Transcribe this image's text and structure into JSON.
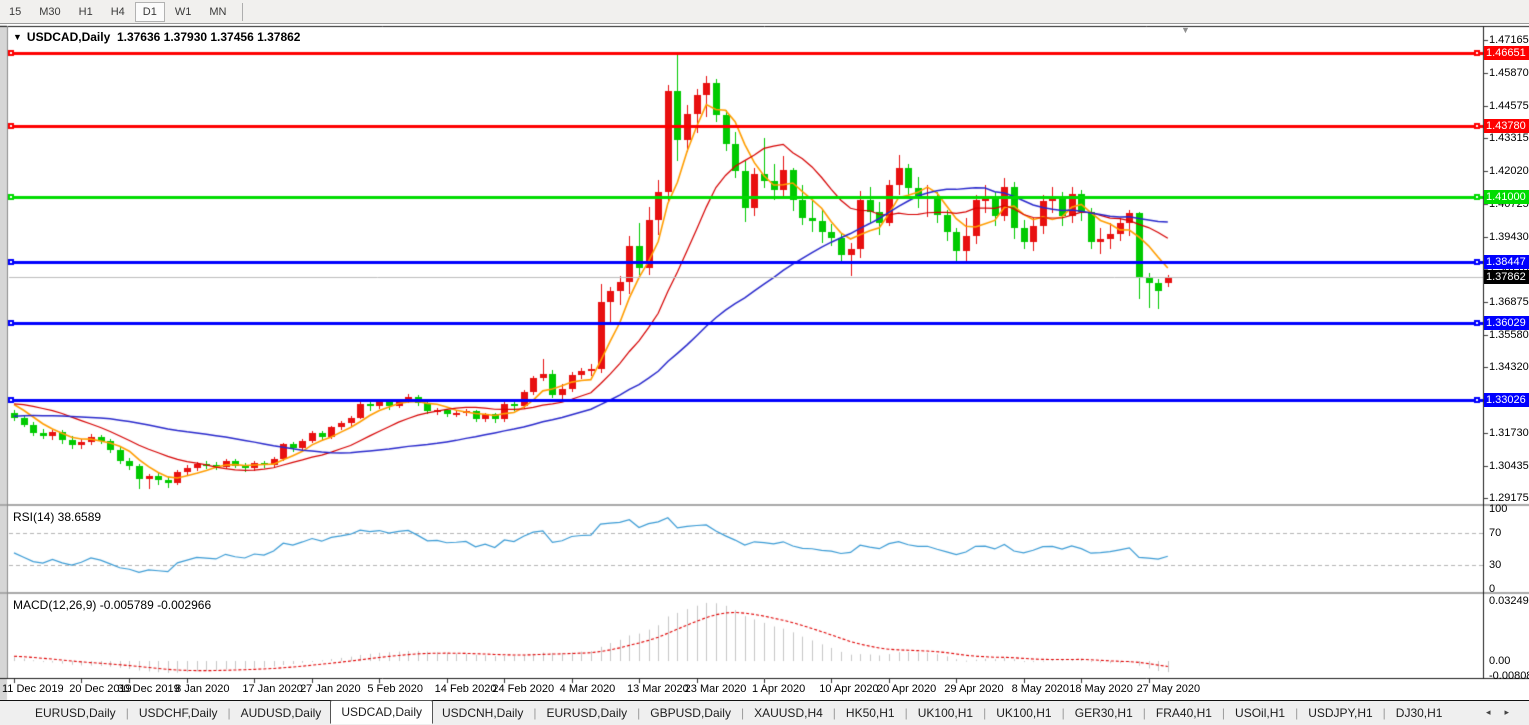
{
  "toolbar": {
    "timeframes": [
      {
        "label": "15",
        "active": false
      },
      {
        "label": "M30",
        "active": false
      },
      {
        "label": "H1",
        "active": false
      },
      {
        "label": "H4",
        "active": false
      },
      {
        "label": "D1",
        "active": true
      },
      {
        "label": "W1",
        "active": false
      },
      {
        "label": "MN",
        "active": false
      }
    ]
  },
  "chart_header": {
    "collapse_icon": "▼",
    "symbol": "USDCAD,Daily",
    "quote": "1.37636 1.37930 1.37456 1.37862",
    "shift_marker_icon": "▼"
  },
  "rsi_panel": {
    "label": "RSI(14) 38.6589"
  },
  "macd_panel": {
    "label": "MACD(12,26,9) -0.005789 -0.002966"
  },
  "tabs": {
    "items": [
      {
        "label": "EURUSD,Daily",
        "active": false
      },
      {
        "label": "USDCHF,Daily",
        "active": false
      },
      {
        "label": "AUDUSD,Daily",
        "active": false
      },
      {
        "label": "USDCAD,Daily",
        "active": true
      },
      {
        "label": "USDCNH,Daily",
        "active": false
      },
      {
        "label": "EURUSD,Daily",
        "active": false
      },
      {
        "label": "GBPUSD,Daily",
        "active": false
      },
      {
        "label": "XAUUSD,H4",
        "active": false
      },
      {
        "label": "HK50,H1",
        "active": false
      },
      {
        "label": "UK100,H1",
        "active": false
      },
      {
        "label": "UK100,H1",
        "active": false
      },
      {
        "label": "GER30,H1",
        "active": false
      },
      {
        "label": "FRA40,H1",
        "active": false
      },
      {
        "label": "USOil,H1",
        "active": false
      },
      {
        "label": "USDJPY,H1",
        "active": false
      },
      {
        "label": "DJ30,H1",
        "active": false
      }
    ],
    "scroll_left": "◂",
    "scroll_right": "▸"
  },
  "chart_data": {
    "type": "candlestick",
    "symbol": "USDCAD",
    "timeframe": "Daily",
    "ohlc_current": {
      "open": 1.37636,
      "high": 1.3793,
      "low": 1.37456,
      "close": 1.37862
    },
    "colors": {
      "bull_candle": "#e81010",
      "bear_candle": "#00ca00",
      "ma_fast": "#ff9d00",
      "ma_mid": "#d60000",
      "ma_slow": "#2828cc",
      "hline_red": "#fe0000",
      "hline_green": "#00dc00",
      "hline_blue": "#0000fe",
      "current_price_line": "#bdbdbd",
      "current_price_badge": "#000000",
      "rsi_line": "#3a9bd5",
      "rsi_levels": "#b4b4b4",
      "macd_histogram": "#c6c6c6",
      "macd_signal": "#e00000"
    },
    "price_axis": {
      "top": 1.47666,
      "bottom": 1.28904,
      "tick_labels": [
        "1.47165",
        "1.45870",
        "1.44575",
        "1.43315",
        "1.42020",
        "1.40725",
        "1.39430",
        "1.38170",
        "1.36875",
        "1.35580",
        "1.34320",
        "1.33025",
        "1.31730",
        "1.30435",
        "1.29175"
      ]
    },
    "horizontal_lines": [
      {
        "price": 1.46651,
        "label": "1.46651",
        "color": "#fe0000"
      },
      {
        "price": 1.4378,
        "label": "1.43780",
        "color": "#fe0000"
      },
      {
        "price": 1.41,
        "label": "1.41000",
        "color": "#00dc00"
      },
      {
        "price": 1.38447,
        "label": "1.38447",
        "color": "#0000fe"
      },
      {
        "price": 1.36029,
        "label": "1.36029",
        "color": "#0000fe"
      },
      {
        "price": 1.33026,
        "label": "1.33026",
        "color": "#0000fe"
      }
    ],
    "current_price_line": {
      "price": 1.37862,
      "label": "1.37862"
    },
    "rsi": {
      "period": 14,
      "current": 38.6589,
      "levels": [
        {
          "v": 100,
          "label": "100"
        },
        {
          "v": 70,
          "label": "70"
        },
        {
          "v": 30,
          "label": "30"
        },
        {
          "v": 0,
          "label": "0"
        }
      ]
    },
    "macd": {
      "fast": 12,
      "slow": 26,
      "signal": 9,
      "current_macd": -0.005789,
      "current_signal": -0.002966,
      "scale_max": 0.032493,
      "scale_min": -0.00808,
      "axis_labels": [
        {
          "v": 0.032493,
          "label": "0.032493"
        },
        {
          "v": 0,
          "label": "0.00"
        },
        {
          "v": -0.00808,
          "label": "-0.00808"
        }
      ]
    },
    "moving_averages": [
      {
        "name": "SMA5",
        "period": 5,
        "color": "#ff9d00",
        "width": 1.6
      },
      {
        "name": "SMA13",
        "period": 13,
        "color": "#d60000",
        "width": 1.2
      },
      {
        "name": "SMA34",
        "period": 34,
        "color": "#2828cc",
        "width": 1.5
      }
    ],
    "time_axis": [
      {
        "i": 0,
        "label": "11 Dec 2019"
      },
      {
        "i": 7,
        "label": "20 Dec 2019"
      },
      {
        "i": 12,
        "label": "30 Dec 2019"
      },
      {
        "i": 18,
        "label": "8 Jan 2020"
      },
      {
        "i": 25,
        "label": "17 Jan 2020"
      },
      {
        "i": 31,
        "label": "27 Jan 2020"
      },
      {
        "i": 38,
        "label": "5 Feb 2020"
      },
      {
        "i": 45,
        "label": "14 Feb 2020"
      },
      {
        "i": 51,
        "label": "24 Feb 2020"
      },
      {
        "i": 58,
        "label": "4 Mar 2020"
      },
      {
        "i": 65,
        "label": "13 Mar 2020"
      },
      {
        "i": 71,
        "label": "23 Mar 2020"
      },
      {
        "i": 78,
        "label": "1 Apr 2020"
      },
      {
        "i": 85,
        "label": "10 Apr 2020"
      },
      {
        "i": 91,
        "label": "20 Apr 2020"
      },
      {
        "i": 98,
        "label": "29 Apr 2020"
      },
      {
        "i": 105,
        "label": "8 May 2020"
      },
      {
        "i": 111,
        "label": "18 May 2020"
      },
      {
        "i": 118,
        "label": "27 May 2020"
      }
    ],
    "prehistory_closes": [
      1.3162,
      1.3148,
      1.3155,
      1.317,
      1.3185,
      1.3178,
      1.3192,
      1.3205,
      1.3218,
      1.321,
      1.3225,
      1.3238,
      1.323,
      1.3222,
      1.3235,
      1.3248,
      1.324,
      1.3228,
      1.3215,
      1.3202,
      1.3218,
      1.3232,
      1.3245,
      1.3258,
      1.327,
      1.3282,
      1.3295,
      1.3308,
      1.332,
      1.3332,
      1.3318,
      1.3305,
      1.3292,
      1.3278
    ],
    "candles": [
      [
        1.3252,
        1.3262,
        1.3222,
        1.3232
      ],
      [
        1.3232,
        1.3245,
        1.3195,
        1.3205
      ],
      [
        1.3205,
        1.3218,
        1.316,
        1.3172
      ],
      [
        1.3172,
        1.319,
        1.315,
        1.316
      ],
      [
        1.316,
        1.3186,
        1.3145,
        1.3176
      ],
      [
        1.3176,
        1.3184,
        1.313,
        1.3146
      ],
      [
        1.3146,
        1.316,
        1.311,
        1.3126
      ],
      [
        1.3126,
        1.315,
        1.3112,
        1.3138
      ],
      [
        1.3138,
        1.3168,
        1.3125,
        1.3158
      ],
      [
        1.3158,
        1.3166,
        1.3128,
        1.314
      ],
      [
        1.314,
        1.3148,
        1.3095,
        1.3106
      ],
      [
        1.3106,
        1.3118,
        1.305,
        1.3062
      ],
      [
        1.3062,
        1.3075,
        1.3028,
        1.3042
      ],
      [
        1.3042,
        1.305,
        1.2952,
        1.2992
      ],
      [
        1.2992,
        1.3012,
        1.2955,
        1.3004
      ],
      [
        1.3004,
        1.3018,
        1.2968,
        1.299
      ],
      [
        1.299,
        1.3,
        1.2956,
        1.2976
      ],
      [
        1.2976,
        1.3028,
        1.2968,
        1.302
      ],
      [
        1.302,
        1.3046,
        1.3006,
        1.3036
      ],
      [
        1.3036,
        1.306,
        1.3024,
        1.3052
      ],
      [
        1.3052,
        1.3064,
        1.303,
        1.3046
      ],
      [
        1.3046,
        1.3058,
        1.3026,
        1.3038
      ],
      [
        1.3038,
        1.3072,
        1.303,
        1.3064
      ],
      [
        1.3064,
        1.307,
        1.3034,
        1.3044
      ],
      [
        1.3044,
        1.3056,
        1.302,
        1.3034
      ],
      [
        1.3034,
        1.3062,
        1.3025,
        1.3056
      ],
      [
        1.3056,
        1.3062,
        1.3036,
        1.3048
      ],
      [
        1.3048,
        1.3078,
        1.304,
        1.3072
      ],
      [
        1.3072,
        1.3135,
        1.3062,
        1.3128
      ],
      [
        1.3128,
        1.3138,
        1.3098,
        1.3116
      ],
      [
        1.3116,
        1.315,
        1.3106,
        1.3142
      ],
      [
        1.3142,
        1.318,
        1.3134,
        1.3174
      ],
      [
        1.3174,
        1.3182,
        1.3146,
        1.3158
      ],
      [
        1.3158,
        1.3202,
        1.315,
        1.3196
      ],
      [
        1.3196,
        1.3222,
        1.3184,
        1.3212
      ],
      [
        1.3212,
        1.324,
        1.3198,
        1.3232
      ],
      [
        1.3232,
        1.3295,
        1.3226,
        1.3288
      ],
      [
        1.3288,
        1.3296,
        1.326,
        1.328
      ],
      [
        1.328,
        1.3302,
        1.3266,
        1.3294
      ],
      [
        1.3294,
        1.33,
        1.3264,
        1.328
      ],
      [
        1.328,
        1.3308,
        1.327,
        1.3302
      ],
      [
        1.3302,
        1.3325,
        1.329,
        1.3316
      ],
      [
        1.3316,
        1.3322,
        1.328,
        1.329
      ],
      [
        1.329,
        1.3298,
        1.3248,
        1.3258
      ],
      [
        1.3258,
        1.327,
        1.3244,
        1.3262
      ],
      [
        1.3262,
        1.3268,
        1.3236,
        1.3248
      ],
      [
        1.3248,
        1.3262,
        1.3234,
        1.3252
      ],
      [
        1.3252,
        1.3266,
        1.3238,
        1.3258
      ],
      [
        1.3258,
        1.3262,
        1.3216,
        1.3228
      ],
      [
        1.3228,
        1.3252,
        1.3218,
        1.3246
      ],
      [
        1.3246,
        1.325,
        1.3214,
        1.3226
      ],
      [
        1.3226,
        1.3295,
        1.3218,
        1.3288
      ],
      [
        1.3288,
        1.3296,
        1.326,
        1.3278
      ],
      [
        1.3278,
        1.334,
        1.3268,
        1.3332
      ],
      [
        1.3332,
        1.3395,
        1.3322,
        1.3388
      ],
      [
        1.3388,
        1.3464,
        1.3378,
        1.3406
      ],
      [
        1.3406,
        1.342,
        1.3312,
        1.3324
      ],
      [
        1.3324,
        1.3365,
        1.3306,
        1.3344
      ],
      [
        1.3344,
        1.3412,
        1.3334,
        1.3402
      ],
      [
        1.3402,
        1.343,
        1.3386,
        1.3418
      ],
      [
        1.3418,
        1.3442,
        1.3395,
        1.3424
      ],
      [
        1.3424,
        1.3758,
        1.341,
        1.3688
      ],
      [
        1.3688,
        1.3748,
        1.3605,
        1.3732
      ],
      [
        1.3732,
        1.379,
        1.3675,
        1.3766
      ],
      [
        1.3766,
        1.3948,
        1.3718,
        1.3906
      ],
      [
        1.3906,
        1.3996,
        1.3795,
        1.3822
      ],
      [
        1.3822,
        1.406,
        1.3792,
        1.4008
      ],
      [
        1.4008,
        1.4165,
        1.395,
        1.412
      ],
      [
        1.412,
        1.454,
        1.4082,
        1.4515
      ],
      [
        1.4515,
        1.4668,
        1.4242,
        1.4322
      ],
      [
        1.4322,
        1.4462,
        1.4275,
        1.4426
      ],
      [
        1.4426,
        1.4524,
        1.435,
        1.4498
      ],
      [
        1.4498,
        1.4575,
        1.4415,
        1.4548
      ],
      [
        1.4548,
        1.4564,
        1.4392,
        1.442
      ],
      [
        1.442,
        1.4442,
        1.428,
        1.4308
      ],
      [
        1.4308,
        1.4356,
        1.4172,
        1.42
      ],
      [
        1.42,
        1.4242,
        1.4,
        1.4055
      ],
      [
        1.4055,
        1.4214,
        1.4024,
        1.4188
      ],
      [
        1.4188,
        1.433,
        1.4136,
        1.4162
      ],
      [
        1.4162,
        1.423,
        1.4086,
        1.4128
      ],
      [
        1.4128,
        1.4262,
        1.41,
        1.4205
      ],
      [
        1.4205,
        1.4212,
        1.4046,
        1.4088
      ],
      [
        1.4088,
        1.4148,
        1.3988,
        1.4018
      ],
      [
        1.4018,
        1.4082,
        1.396,
        1.4006
      ],
      [
        1.4006,
        1.4048,
        1.3918,
        1.396
      ],
      [
        1.396,
        1.3992,
        1.3906,
        1.394
      ],
      [
        1.394,
        1.3958,
        1.385,
        1.387
      ],
      [
        1.387,
        1.392,
        1.3788,
        1.3896
      ],
      [
        1.3896,
        1.4122,
        1.386,
        1.4088
      ],
      [
        1.4088,
        1.4138,
        1.3998,
        1.404
      ],
      [
        1.404,
        1.4078,
        1.395,
        1.3998
      ],
      [
        1.3998,
        1.4168,
        1.3986,
        1.4146
      ],
      [
        1.4146,
        1.4265,
        1.4106,
        1.4212
      ],
      [
        1.4212,
        1.4228,
        1.4102,
        1.4136
      ],
      [
        1.4136,
        1.4178,
        1.4056,
        1.4096
      ],
      [
        1.4096,
        1.4148,
        1.402,
        1.41
      ],
      [
        1.41,
        1.4118,
        1.3996,
        1.4028
      ],
      [
        1.4028,
        1.4048,
        1.3926,
        1.396
      ],
      [
        1.396,
        1.3978,
        1.3846,
        1.3888
      ],
      [
        1.3888,
        1.4018,
        1.384,
        1.3945
      ],
      [
        1.3945,
        1.4108,
        1.3916,
        1.4086
      ],
      [
        1.4086,
        1.4148,
        1.4036,
        1.4092
      ],
      [
        1.4092,
        1.4118,
        1.3986,
        1.4026
      ],
      [
        1.4026,
        1.4172,
        1.4006,
        1.414
      ],
      [
        1.414,
        1.4158,
        1.3936,
        1.3976
      ],
      [
        1.3976,
        1.4008,
        1.3896,
        1.3922
      ],
      [
        1.3922,
        1.4018,
        1.3886,
        1.3986
      ],
      [
        1.3986,
        1.4108,
        1.3956,
        1.4082
      ],
      [
        1.4082,
        1.4138,
        1.4036,
        1.409
      ],
      [
        1.409,
        1.4118,
        1.3986,
        1.4026
      ],
      [
        1.4026,
        1.4138,
        1.3996,
        1.411
      ],
      [
        1.411,
        1.4128,
        1.4006,
        1.4042
      ],
      [
        1.4042,
        1.4058,
        1.3896,
        1.3922
      ],
      [
        1.3922,
        1.3978,
        1.3876,
        1.3936
      ],
      [
        1.3936,
        1.3998,
        1.3896,
        1.3956
      ],
      [
        1.3956,
        1.4018,
        1.3926,
        1.3996
      ],
      [
        1.3996,
        1.4048,
        1.3946,
        1.4038
      ],
      [
        1.4038,
        1.4042,
        1.37,
        1.3786
      ],
      [
        1.3786,
        1.38,
        1.3665,
        1.3762
      ],
      [
        1.3762,
        1.3778,
        1.3658,
        1.3732
      ],
      [
        1.37636,
        1.3793,
        1.37456,
        1.37862
      ]
    ]
  }
}
